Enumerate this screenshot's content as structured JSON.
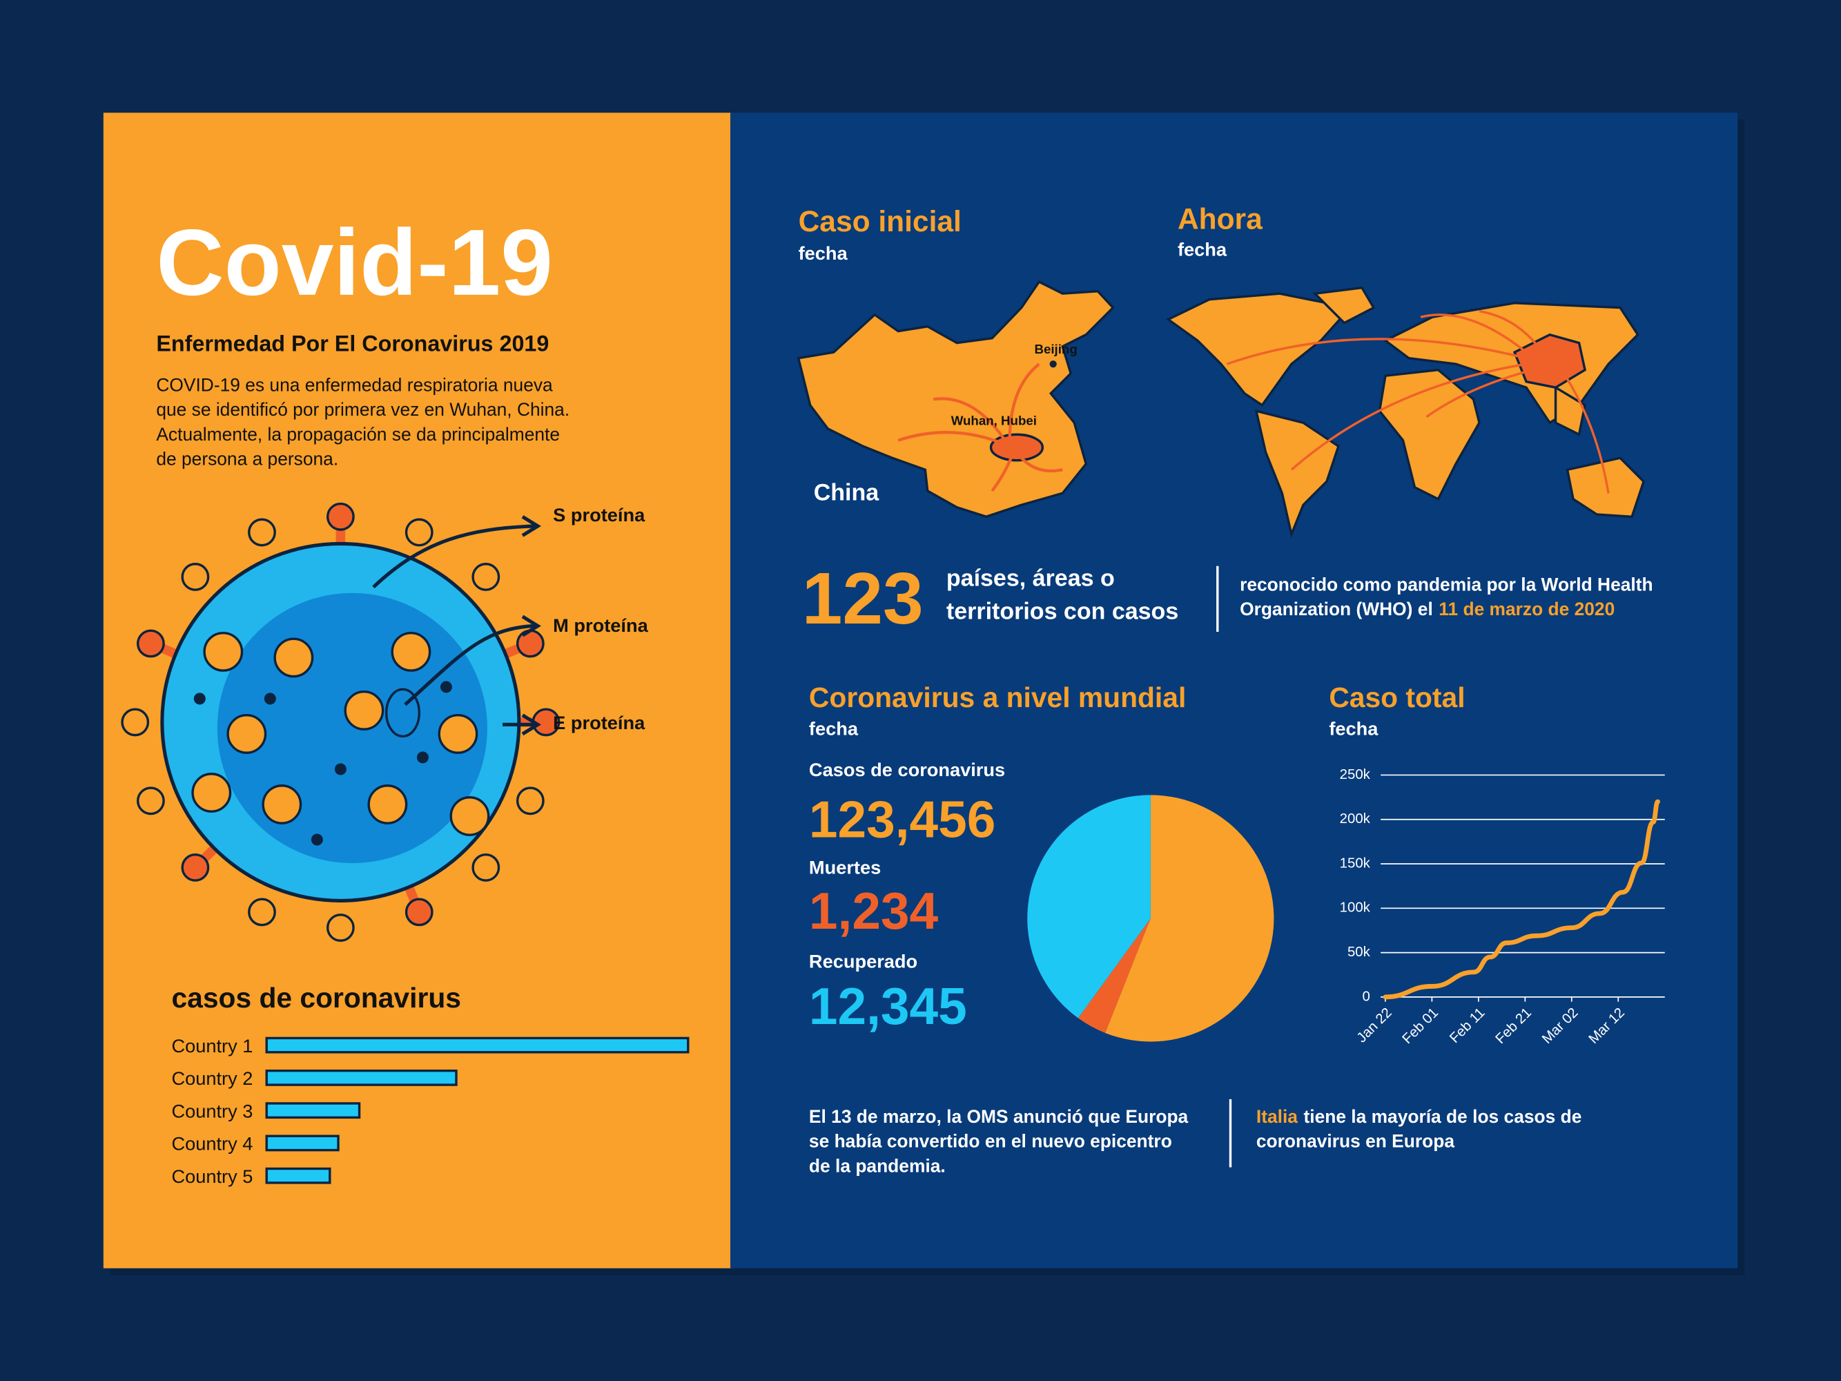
{
  "header": {
    "title": "Covid-19",
    "subtitle": "Enfermedad Por El Coronavirus 2019",
    "description": [
      "COVID-19 es una enfermedad respiratoria nueva",
      "que se identificó por primera vez en Wuhan, China.",
      "Actualmente, la propagación se da principalmente",
      "de persona a persona."
    ]
  },
  "virus": {
    "labels": [
      "S proteína",
      "M proteína",
      "E proteína"
    ]
  },
  "maps": {
    "initial": {
      "title": "Caso inicial",
      "date": "fecha",
      "region": "China",
      "places": [
        "Beijing",
        "Wuhan, Hubei"
      ]
    },
    "now": {
      "title": "Ahora",
      "date": "fecha"
    }
  },
  "facts": {
    "count": "123",
    "count_text": [
      "países, áreas o",
      "territorios con casos"
    ],
    "pandemic": [
      "reconocido como pandemia por la World Health",
      "Organization (WHO) el"
    ],
    "pandemic_date": "11 de marzo de 2020"
  },
  "world": {
    "title": "Coronavirus a nivel mundial",
    "date": "fecha",
    "stats": [
      {
        "label": "Casos de coronavirus",
        "value": "123,456",
        "color": "#f9a12a"
      },
      {
        "label": "Muertes",
        "value": "1,234",
        "color": "#f0612a"
      },
      {
        "label": "Recuperado",
        "value": "12,345",
        "color": "#1ec8f5"
      }
    ]
  },
  "notes": {
    "europe": [
      "El 13 de marzo, la OMS anunció que Europa",
      "se había convertido en el nuevo epicentro",
      "de la pandemia."
    ],
    "italy_highlight": "Italia",
    "italy": [
      "tiene la mayoría de los casos de",
      "coronavirus en Europa"
    ]
  },
  "chart_data": [
    {
      "type": "bar",
      "title": "casos de coronavirus",
      "categories": [
        "Country 1",
        "Country 2",
        "Country 3",
        "Country 4",
        "Country 5"
      ],
      "values": [
        100,
        45,
        22,
        17,
        15
      ],
      "xlim": [
        0,
        100
      ],
      "color": "#1ec8f5"
    },
    {
      "type": "pie",
      "values": [
        56,
        4,
        40
      ],
      "colors": [
        "#f9a12a",
        "#f0612a",
        "#1ec8f5"
      ]
    },
    {
      "type": "line",
      "title": "Caso total",
      "subtitle": "fecha",
      "x": [
        0,
        10,
        19,
        22.5,
        26,
        32.5,
        40,
        46,
        51,
        55,
        57.5,
        58.5
      ],
      "values": [
        0,
        12000,
        28000,
        45000,
        61000,
        69000,
        78000,
        94000,
        118000,
        151000,
        197000,
        220000
      ],
      "color": "#f9a12a",
      "xlim": [
        -1,
        60
      ],
      "ylim": [
        0,
        250000
      ],
      "xticks": [
        {
          "value": 0,
          "label": "Jan 22"
        },
        {
          "value": 10,
          "label": "Feb 01"
        },
        {
          "value": 20,
          "label": "Feb 11"
        },
        {
          "value": 30,
          "label": "Feb 21"
        },
        {
          "value": 40,
          "label": "Mar 02"
        },
        {
          "value": 50,
          "label": "Mar 12"
        }
      ],
      "yticks": [
        0,
        {
          "value": 50000,
          "label": "50k"
        },
        {
          "value": 100000,
          "label": "100k"
        },
        {
          "value": 150000,
          "label": "150k"
        },
        {
          "value": 200000,
          "label": "200k"
        },
        {
          "value": 250000,
          "label": "250k"
        }
      ],
      "grid": true
    }
  ]
}
